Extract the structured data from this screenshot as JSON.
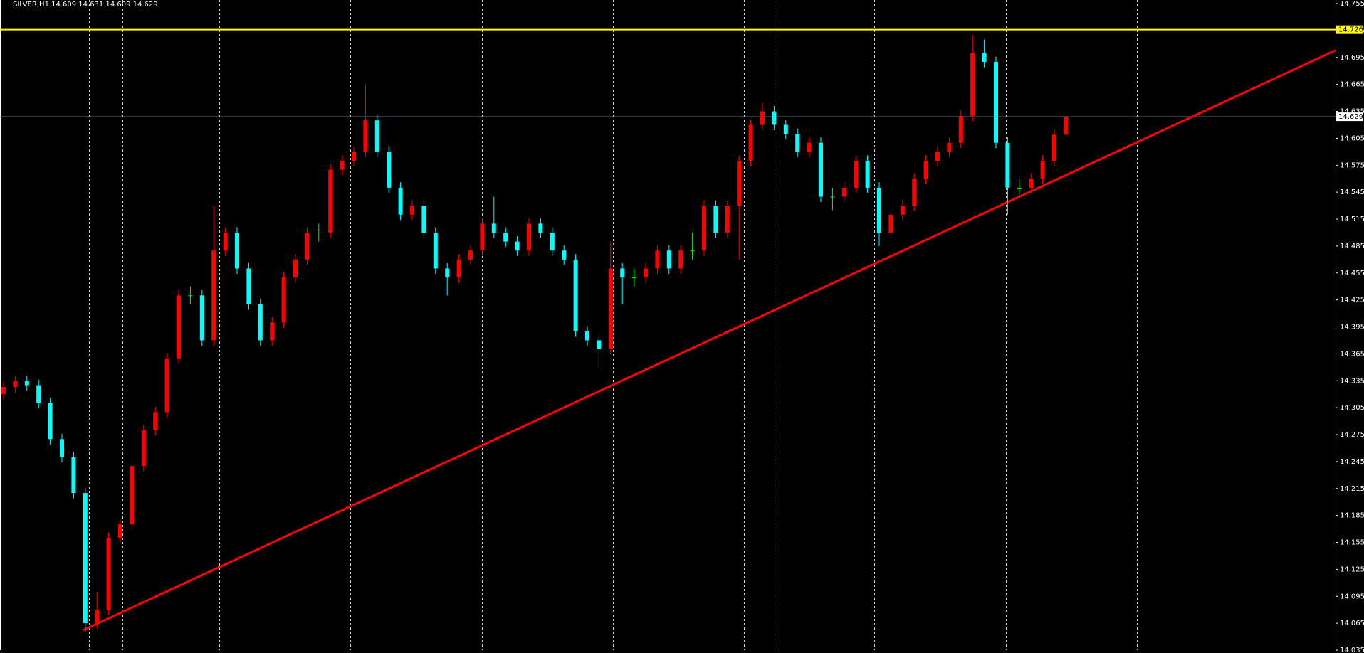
{
  "chart_data": {
    "type": "candlestick",
    "title": "SILVER,H1  14.609 14.631 14.609 14.629",
    "up_color": "#ff0000",
    "down_color": "#00ffff",
    "doji_color": "#00ff00",
    "open": [
      14.32,
      14.328,
      14.335,
      14.33,
      14.31,
      14.27,
      14.25,
      14.21,
      14.065,
      14.08,
      14.16,
      14.175,
      14.24,
      14.28,
      14.3,
      14.36,
      14.43,
      14.43,
      14.38,
      14.48,
      14.5,
      14.46,
      14.42,
      14.38,
      14.4,
      14.45,
      14.47,
      14.5,
      14.5,
      14.57,
      14.58,
      14.59,
      14.625,
      14.59,
      14.55,
      14.52,
      14.53,
      14.5,
      14.46,
      14.45,
      14.47,
      14.48,
      14.51,
      14.5,
      14.49,
      14.48,
      14.51,
      14.5,
      14.48,
      14.47,
      14.39,
      14.38,
      14.37,
      14.46,
      14.45,
      14.45,
      14.46,
      14.48,
      14.46,
      14.48,
      14.48,
      14.53,
      14.5,
      14.53,
      14.58,
      14.62,
      14.635,
      14.62,
      14.61,
      14.59,
      14.6,
      14.54,
      14.54,
      14.55,
      14.58,
      14.55,
      14.5,
      14.52,
      14.53,
      14.56,
      14.58,
      14.59,
      14.6,
      14.63,
      14.7,
      14.69,
      14.6,
      14.55,
      14.55,
      14.56,
      14.58,
      14.609
    ],
    "high": [
      14.334,
      14.341,
      14.341,
      14.336,
      14.316,
      14.276,
      14.256,
      14.216,
      14.1,
      14.166,
      14.181,
      14.246,
      14.286,
      14.306,
      14.366,
      14.436,
      14.44,
      14.436,
      14.53,
      14.506,
      14.506,
      14.466,
      14.426,
      14.406,
      14.456,
      14.476,
      14.506,
      14.51,
      14.576,
      14.586,
      14.596,
      14.665,
      14.631,
      14.596,
      14.556,
      14.536,
      14.536,
      14.506,
      14.466,
      14.476,
      14.486,
      14.516,
      14.54,
      14.506,
      14.496,
      14.516,
      14.516,
      14.506,
      14.486,
      14.476,
      14.396,
      14.386,
      14.49,
      14.466,
      14.46,
      14.466,
      14.486,
      14.486,
      14.486,
      14.5,
      14.536,
      14.536,
      14.536,
      14.586,
      14.626,
      14.645,
      14.641,
      14.626,
      14.616,
      14.606,
      14.606,
      14.55,
      14.556,
      14.586,
      14.586,
      14.556,
      14.526,
      14.536,
      14.566,
      14.586,
      14.596,
      14.606,
      14.636,
      14.72,
      14.715,
      14.696,
      14.606,
      14.56,
      14.566,
      14.586,
      14.615,
      14.631
    ],
    "low": [
      14.314,
      14.322,
      14.324,
      14.304,
      14.264,
      14.244,
      14.204,
      14.055,
      14.059,
      14.074,
      14.154,
      14.169,
      14.234,
      14.274,
      14.294,
      14.354,
      14.42,
      14.374,
      14.374,
      14.474,
      14.454,
      14.414,
      14.374,
      14.374,
      14.394,
      14.444,
      14.464,
      14.49,
      14.494,
      14.564,
      14.574,
      14.584,
      14.584,
      14.544,
      14.514,
      14.514,
      14.494,
      14.454,
      14.43,
      14.444,
      14.464,
      14.474,
      14.494,
      14.484,
      14.474,
      14.474,
      14.494,
      14.474,
      14.464,
      14.384,
      14.374,
      14.35,
      14.364,
      14.42,
      14.44,
      14.444,
      14.454,
      14.454,
      14.454,
      14.47,
      14.474,
      14.494,
      14.494,
      14.47,
      14.574,
      14.614,
      14.614,
      14.604,
      14.584,
      14.584,
      14.534,
      14.525,
      14.534,
      14.544,
      14.544,
      14.485,
      14.494,
      14.514,
      14.524,
      14.554,
      14.574,
      14.584,
      14.594,
      14.624,
      14.684,
      14.594,
      14.52,
      14.54,
      14.544,
      14.554,
      14.574,
      14.609
    ],
    "close": [
      14.328,
      14.335,
      14.33,
      14.31,
      14.27,
      14.25,
      14.21,
      14.065,
      14.08,
      14.16,
      14.175,
      14.24,
      14.28,
      14.3,
      14.36,
      14.43,
      14.43,
      14.38,
      14.48,
      14.5,
      14.46,
      14.42,
      14.38,
      14.4,
      14.45,
      14.47,
      14.5,
      14.5,
      14.57,
      14.58,
      14.59,
      14.625,
      14.59,
      14.55,
      14.52,
      14.53,
      14.5,
      14.46,
      14.45,
      14.47,
      14.48,
      14.51,
      14.5,
      14.49,
      14.48,
      14.51,
      14.5,
      14.48,
      14.47,
      14.39,
      14.38,
      14.37,
      14.46,
      14.45,
      14.45,
      14.46,
      14.48,
      14.46,
      14.48,
      14.48,
      14.53,
      14.5,
      14.53,
      14.58,
      14.62,
      14.635,
      14.62,
      14.61,
      14.59,
      14.6,
      14.54,
      14.54,
      14.55,
      14.58,
      14.55,
      14.5,
      14.52,
      14.53,
      14.56,
      14.58,
      14.59,
      14.6,
      14.63,
      14.7,
      14.69,
      14.6,
      14.55,
      14.55,
      14.56,
      14.58,
      14.609,
      14.629
    ],
    "ylim": [
      14.035,
      14.759
    ],
    "yticks": [
      14.035,
      14.065,
      14.095,
      14.125,
      14.155,
      14.185,
      14.215,
      14.245,
      14.275,
      14.305,
      14.335,
      14.365,
      14.395,
      14.425,
      14.455,
      14.485,
      14.515,
      14.545,
      14.575,
      14.605,
      14.635,
      14.665,
      14.695,
      14.725,
      14.755
    ],
    "levels": [
      {
        "value": 14.726,
        "color": "#ffff00"
      },
      {
        "value": 14.629,
        "color": "#8090a0"
      }
    ],
    "trendline": {
      "color": "#ff0000",
      "values": [
        14.057,
        14.703
      ]
    }
  }
}
